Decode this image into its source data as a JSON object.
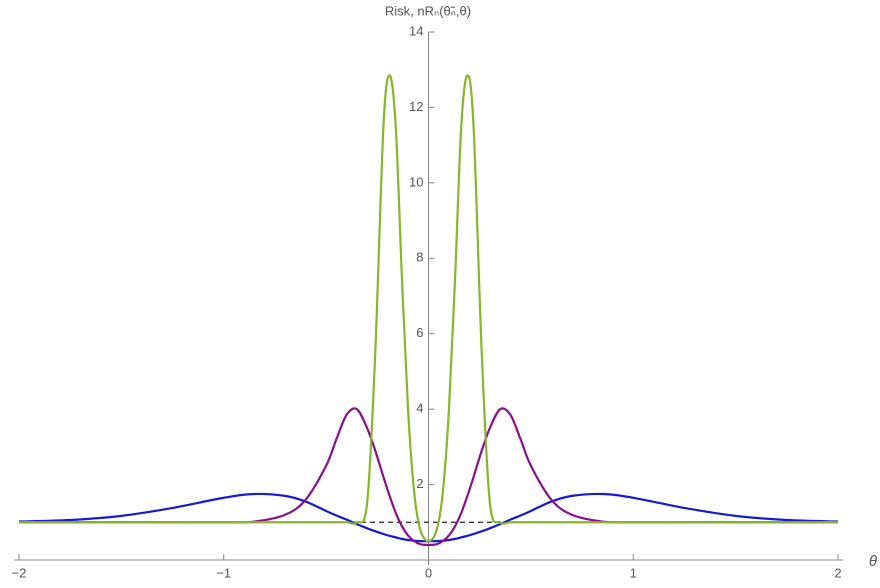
{
  "chart_data": {
    "type": "line",
    "ylabel": "Risk, nRₙ(θ̃ₙ,θ)",
    "xlabel": "θ",
    "x": [
      -2,
      -1.75,
      -1.5,
      -1.25,
      -1,
      -0.85,
      -0.7,
      -0.6,
      -0.5,
      -0.45,
      -0.4,
      -0.35,
      -0.3,
      -0.26,
      -0.22,
      -0.19,
      -0.16,
      -0.13,
      -0.1,
      -0.07,
      -0.04,
      0,
      0.04,
      0.07,
      0.1,
      0.13,
      0.16,
      0.19,
      0.22,
      0.26,
      0.3,
      0.35,
      0.4,
      0.45,
      0.5,
      0.6,
      0.7,
      0.85,
      1,
      1.25,
      1.5,
      1.75,
      2
    ],
    "series": [
      {
        "color": "#1a1ad0",
        "values": [
          1.02,
          1.06,
          1.17,
          1.38,
          1.65,
          1.75,
          1.7,
          1.55,
          1.3,
          1.18,
          1.07,
          0.95,
          0.84,
          0.76,
          0.69,
          0.64,
          0.6,
          0.56,
          0.53,
          0.51,
          0.5,
          0.5,
          0.5,
          0.51,
          0.53,
          0.56,
          0.6,
          0.64,
          0.69,
          0.76,
          0.84,
          0.95,
          1.07,
          1.18,
          1.3,
          1.55,
          1.7,
          1.75,
          1.65,
          1.38,
          1.17,
          1.06,
          1.02
        ]
      },
      {
        "color": "#8a0f8a",
        "values": [
          1,
          1,
          1,
          1,
          1,
          1.02,
          1.2,
          1.6,
          2.5,
          3.2,
          3.85,
          4.0,
          3.5,
          2.9,
          2.2,
          1.7,
          1.25,
          0.9,
          0.65,
          0.5,
          0.42,
          0.4,
          0.42,
          0.5,
          0.65,
          0.9,
          1.25,
          1.7,
          2.2,
          2.9,
          3.5,
          4.0,
          3.85,
          3.2,
          2.5,
          1.6,
          1.2,
          1.02,
          1,
          1,
          1,
          1,
          1
        ]
      },
      {
        "color": "#8ab42a",
        "values": [
          1,
          1,
          1,
          1,
          1,
          1,
          1,
          1,
          1,
          1,
          1,
          1,
          1.5,
          5.5,
          11.5,
          12.85,
          11.5,
          7.5,
          4.0,
          1.8,
          0.8,
          0.5,
          0.8,
          1.8,
          4.0,
          7.5,
          11.5,
          12.85,
          11.5,
          5.5,
          1.5,
          1,
          1,
          1,
          1,
          1,
          1,
          1,
          1,
          1,
          1,
          1,
          1
        ]
      }
    ],
    "reference_line": {
      "y": 1,
      "color": "#222222",
      "style": "dashed"
    },
    "xlim": [
      -2,
      2
    ],
    "ylim": [
      0,
      14
    ],
    "xticks": [
      {
        "value": -2,
        "label": "−2"
      },
      {
        "value": -1,
        "label": "−1"
      },
      0,
      1,
      2
    ],
    "yticks": [
      2,
      4,
      6,
      8,
      10,
      12,
      14
    ]
  }
}
